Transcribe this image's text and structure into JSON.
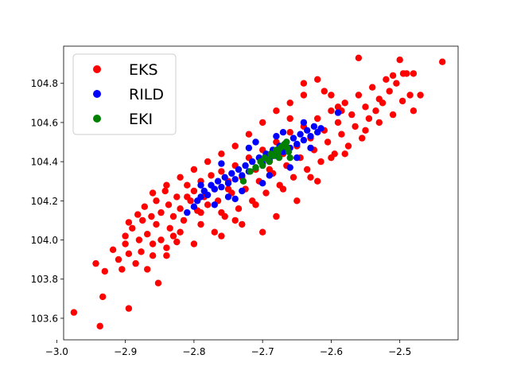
{
  "chart_data": {
    "type": "scatter",
    "title": "",
    "xlabel": "",
    "ylabel": "",
    "xlim": [
      -2.99,
      -2.415
    ],
    "ylim": [
      103.49,
      104.99
    ],
    "xticks": [
      -3.0,
      -2.9,
      -2.8,
      -2.7,
      -2.6,
      -2.5
    ],
    "xtick_labels": [
      "−3.0",
      "−2.9",
      "−2.8",
      "−2.7",
      "−2.6",
      "−2.5"
    ],
    "yticks": [
      103.6,
      103.8,
      104.0,
      104.2,
      104.4,
      104.6,
      104.8
    ],
    "ytick_labels": [
      "103.6",
      "103.8",
      "104.0",
      "104.2",
      "104.4",
      "104.6",
      "104.8"
    ],
    "grid": false,
    "legend_position": "upper-left",
    "series": [
      {
        "name": "EKS",
        "color": "#ff0000",
        "points": [
          [
            -2.975,
            103.63
          ],
          [
            -2.937,
            103.56
          ],
          [
            -2.933,
            103.71
          ],
          [
            -2.895,
            103.65
          ],
          [
            -2.943,
            103.88
          ],
          [
            -2.93,
            103.84
          ],
          [
            -2.918,
            103.95
          ],
          [
            -2.91,
            103.9
          ],
          [
            -2.905,
            103.85
          ],
          [
            -2.9,
            103.98
          ],
          [
            -2.895,
            103.93
          ],
          [
            -2.885,
            103.88
          ],
          [
            -2.877,
            103.94
          ],
          [
            -2.868,
            103.85
          ],
          [
            -2.86,
            103.92
          ],
          [
            -2.852,
            103.78
          ],
          [
            -2.9,
            104.02
          ],
          [
            -2.89,
            104.06
          ],
          [
            -2.88,
            104.0
          ],
          [
            -2.875,
            104.1
          ],
          [
            -2.868,
            104.03
          ],
          [
            -2.86,
            103.98
          ],
          [
            -2.855,
            104.08
          ],
          [
            -2.848,
            104.0
          ],
          [
            -2.84,
            103.96
          ],
          [
            -2.835,
            104.06
          ],
          [
            -2.83,
            104.02
          ],
          [
            -2.825,
            103.99
          ],
          [
            -2.895,
            104.09
          ],
          [
            -2.882,
            104.13
          ],
          [
            -2.872,
            104.17
          ],
          [
            -2.862,
            104.12
          ],
          [
            -2.855,
            104.2
          ],
          [
            -2.848,
            104.14
          ],
          [
            -2.842,
            104.25
          ],
          [
            -2.837,
            104.18
          ],
          [
            -2.83,
            104.12
          ],
          [
            -2.825,
            104.22
          ],
          [
            -2.82,
            104.16
          ],
          [
            -2.815,
            104.1
          ],
          [
            -2.81,
            104.28
          ],
          [
            -2.805,
            104.2
          ],
          [
            -2.8,
            104.25
          ],
          [
            -2.795,
            104.15
          ],
          [
            -2.79,
            104.3
          ],
          [
            -2.785,
            104.22
          ],
          [
            -2.78,
            104.18
          ],
          [
            -2.775,
            104.33
          ],
          [
            -2.77,
            104.26
          ],
          [
            -2.765,
            104.2
          ],
          [
            -2.76,
            104.35
          ],
          [
            -2.755,
            104.12
          ],
          [
            -2.75,
            104.3
          ],
          [
            -2.745,
            104.24
          ],
          [
            -2.74,
            104.38
          ],
          [
            -2.735,
            104.16
          ],
          [
            -2.73,
            104.32
          ],
          [
            -2.725,
            104.26
          ],
          [
            -2.72,
            104.42
          ],
          [
            -2.715,
            104.2
          ],
          [
            -2.71,
            104.36
          ],
          [
            -2.705,
            104.3
          ],
          [
            -2.7,
            104.46
          ],
          [
            -2.695,
            104.24
          ],
          [
            -2.69,
            104.4
          ],
          [
            -2.685,
            104.34
          ],
          [
            -2.68,
            104.5
          ],
          [
            -2.675,
            104.28
          ],
          [
            -2.67,
            104.44
          ],
          [
            -2.665,
            104.38
          ],
          [
            -2.66,
            104.55
          ],
          [
            -2.655,
            104.32
          ],
          [
            -2.65,
            104.48
          ],
          [
            -2.645,
            104.42
          ],
          [
            -2.64,
            104.58
          ],
          [
            -2.635,
            104.36
          ],
          [
            -2.63,
            104.52
          ],
          [
            -2.625,
            104.46
          ],
          [
            -2.62,
            104.62
          ],
          [
            -2.615,
            104.4
          ],
          [
            -2.61,
            104.56
          ],
          [
            -2.605,
            104.5
          ],
          [
            -2.6,
            104.66
          ],
          [
            -2.595,
            104.44
          ],
          [
            -2.59,
            104.6
          ],
          [
            -2.585,
            104.54
          ],
          [
            -2.58,
            104.7
          ],
          [
            -2.575,
            104.48
          ],
          [
            -2.57,
            104.64
          ],
          [
            -2.565,
            104.58
          ],
          [
            -2.56,
            104.74
          ],
          [
            -2.555,
            104.52
          ],
          [
            -2.55,
            104.68
          ],
          [
            -2.545,
            104.62
          ],
          [
            -2.54,
            104.78
          ],
          [
            -2.535,
            104.66
          ],
          [
            -2.53,
            104.72
          ],
          [
            -2.525,
            104.7
          ],
          [
            -2.52,
            104.82
          ],
          [
            -2.515,
            104.76
          ],
          [
            -2.51,
            104.84
          ],
          [
            -2.505,
            104.8
          ],
          [
            -2.5,
            104.92
          ],
          [
            -2.495,
            104.85
          ],
          [
            -2.49,
            104.85
          ],
          [
            -2.48,
            104.85
          ],
          [
            -2.485,
            104.74
          ],
          [
            -2.496,
            104.71
          ],
          [
            -2.438,
            104.91
          ],
          [
            -2.56,
            104.93
          ],
          [
            -2.62,
            104.82
          ],
          [
            -2.64,
            104.74
          ],
          [
            -2.585,
            104.66
          ],
          [
            -2.6,
            104.42
          ],
          [
            -2.63,
            104.32
          ],
          [
            -2.67,
            104.26
          ],
          [
            -2.71,
            104.18
          ],
          [
            -2.74,
            104.1
          ],
          [
            -2.77,
            104.04
          ],
          [
            -2.8,
            103.98
          ],
          [
            -2.84,
            103.92
          ],
          [
            -2.82,
            104.04
          ],
          [
            -2.79,
            104.08
          ],
          [
            -2.76,
            104.14
          ],
          [
            -2.7,
            104.04
          ],
          [
            -2.68,
            104.12
          ],
          [
            -2.65,
            104.2
          ],
          [
            -2.72,
            104.54
          ],
          [
            -2.74,
            104.48
          ],
          [
            -2.76,
            104.44
          ],
          [
            -2.78,
            104.4
          ],
          [
            -2.8,
            104.36
          ],
          [
            -2.82,
            104.32
          ],
          [
            -2.84,
            104.28
          ],
          [
            -2.86,
            104.24
          ],
          [
            -2.7,
            104.6
          ],
          [
            -2.68,
            104.66
          ],
          [
            -2.66,
            104.7
          ],
          [
            -2.64,
            104.8
          ],
          [
            -2.61,
            104.76
          ],
          [
            -2.6,
            104.74
          ],
          [
            -2.59,
            104.68
          ],
          [
            -2.76,
            104.02
          ],
          [
            -2.69,
            104.36
          ],
          [
            -2.75,
            104.26
          ],
          [
            -2.73,
            104.08
          ],
          [
            -2.79,
            104.14
          ],
          [
            -2.81,
            104.22
          ],
          [
            -2.66,
            104.62
          ],
          [
            -2.62,
            104.3
          ],
          [
            -2.58,
            104.44
          ],
          [
            -2.55,
            104.56
          ],
          [
            -2.53,
            104.6
          ],
          [
            -2.51,
            104.64
          ],
          [
            -2.48,
            104.66
          ],
          [
            -2.47,
            104.74
          ]
        ]
      },
      {
        "name": "RILD",
        "color": "#0000ff",
        "points": [
          [
            -2.81,
            104.14
          ],
          [
            -2.8,
            104.17
          ],
          [
            -2.795,
            104.2
          ],
          [
            -2.79,
            104.22
          ],
          [
            -2.785,
            104.25
          ],
          [
            -2.78,
            104.23
          ],
          [
            -2.775,
            104.28
          ],
          [
            -2.77,
            104.26
          ],
          [
            -2.765,
            104.3
          ],
          [
            -2.76,
            104.27
          ],
          [
            -2.755,
            104.32
          ],
          [
            -2.75,
            104.29
          ],
          [
            -2.745,
            104.34
          ],
          [
            -2.74,
            104.31
          ],
          [
            -2.735,
            104.36
          ],
          [
            -2.73,
            104.33
          ],
          [
            -2.725,
            104.38
          ],
          [
            -2.72,
            104.35
          ],
          [
            -2.715,
            104.4
          ],
          [
            -2.71,
            104.37
          ],
          [
            -2.705,
            104.42
          ],
          [
            -2.7,
            104.39
          ],
          [
            -2.695,
            104.44
          ],
          [
            -2.69,
            104.41
          ],
          [
            -2.685,
            104.46
          ],
          [
            -2.68,
            104.43
          ],
          [
            -2.675,
            104.48
          ],
          [
            -2.67,
            104.45
          ],
          [
            -2.665,
            104.5
          ],
          [
            -2.66,
            104.47
          ],
          [
            -2.655,
            104.52
          ],
          [
            -2.65,
            104.49
          ],
          [
            -2.645,
            104.54
          ],
          [
            -2.64,
            104.51
          ],
          [
            -2.635,
            104.56
          ],
          [
            -2.63,
            104.53
          ],
          [
            -2.625,
            104.58
          ],
          [
            -2.62,
            104.55
          ],
          [
            -2.615,
            104.57
          ],
          [
            -2.76,
            104.39
          ],
          [
            -2.74,
            104.21
          ],
          [
            -2.72,
            104.47
          ],
          [
            -2.7,
            104.29
          ],
          [
            -2.68,
            104.53
          ],
          [
            -2.66,
            104.37
          ],
          [
            -2.64,
            104.6
          ],
          [
            -2.73,
            104.25
          ],
          [
            -2.77,
            104.18
          ],
          [
            -2.69,
            104.33
          ],
          [
            -2.65,
            104.42
          ],
          [
            -2.63,
            104.47
          ],
          [
            -2.79,
            104.28
          ],
          [
            -2.75,
            104.22
          ],
          [
            -2.71,
            104.5
          ],
          [
            -2.67,
            104.55
          ],
          [
            -2.59,
            104.65
          ]
        ]
      },
      {
        "name": "EKI",
        "color": "#008000",
        "points": [
          [
            -2.728,
            104.3
          ],
          [
            -2.718,
            104.35
          ],
          [
            -2.71,
            104.37
          ],
          [
            -2.703,
            104.4
          ],
          [
            -2.697,
            104.42
          ],
          [
            -2.692,
            104.41
          ],
          [
            -2.688,
            104.44
          ],
          [
            -2.684,
            104.43
          ],
          [
            -2.68,
            104.46
          ],
          [
            -2.677,
            104.45
          ],
          [
            -2.674,
            104.47
          ],
          [
            -2.671,
            104.48
          ],
          [
            -2.668,
            104.49
          ],
          [
            -2.665,
            104.5
          ],
          [
            -2.662,
            104.45
          ],
          [
            -2.66,
            104.42
          ],
          [
            -2.7,
            104.38
          ],
          [
            -2.69,
            104.4
          ],
          [
            -2.676,
            104.42
          ],
          [
            -2.664,
            104.47
          ]
        ]
      }
    ]
  }
}
